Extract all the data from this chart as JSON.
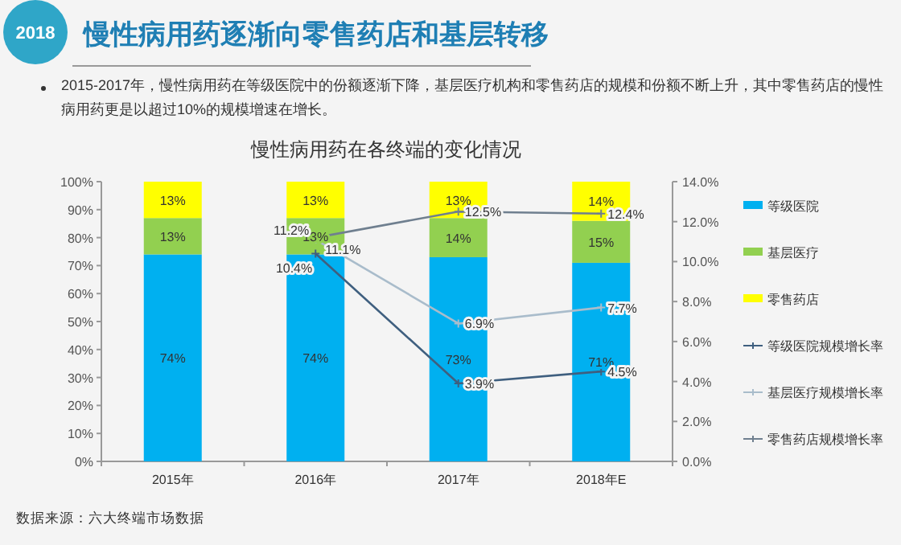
{
  "chart_data": {
    "type": "bar",
    "stacked": true,
    "title": "慢性病用药在各终端的变化情况",
    "annotations": [
      "2018",
      "慢性病用药逐渐向零售药店和基层转移",
      "2015-2017年，慢性病用药在等级医院中的份额逐渐下降，基层医疗机构和零售药店的规模和份额不断上升，其中零售药店的慢性病用药更是以超过10%的规模增速在增长。",
      "数据来源：六大终端市场数据"
    ],
    "categories": [
      "2015年",
      "2016年",
      "2017年",
      "2018年E"
    ],
    "series": [
      {
        "name": "等级医院",
        "color": "#00b0f0",
        "values": [
          74,
          74,
          73,
          71
        ],
        "value_labels": [
          "74%",
          "74%",
          "73%",
          "71%"
        ]
      },
      {
        "name": "基层医疗",
        "color": "#92d050",
        "values": [
          13,
          13,
          14,
          15
        ],
        "value_labels": [
          "13%",
          "13%",
          "14%",
          "15%"
        ]
      },
      {
        "name": "零售药店",
        "color": "#ffff00",
        "values": [
          13,
          13,
          13,
          14
        ],
        "value_labels": [
          "13%",
          "13%",
          "13%",
          "14%"
        ]
      },
      {
        "name": "等级医院规模增长率",
        "type": "line",
        "axis": "y2",
        "color": "#3f5f7f",
        "values": [
          null,
          10.4,
          3.9,
          4.5
        ],
        "value_labels": [
          null,
          "10.4%",
          "3.9%",
          "4.5%"
        ]
      },
      {
        "name": "基层医疗规模增长率",
        "type": "line",
        "axis": "y2",
        "color": "#a9bccb",
        "values": [
          null,
          11.1,
          6.9,
          7.7
        ],
        "value_labels": [
          null,
          "11.1%",
          "6.9%",
          "7.7%"
        ]
      },
      {
        "name": "零售药店规模增长率",
        "type": "line",
        "axis": "y2",
        "color": "#6f7f8f",
        "values": [
          null,
          11.2,
          12.5,
          12.4
        ],
        "value_labels": [
          null,
          "11.2%",
          "12.5%",
          "12.4%"
        ]
      }
    ],
    "ylim": [
      0,
      100
    ],
    "yticks": [
      {
        "value": 0,
        "label": "0%"
      },
      {
        "value": 10,
        "label": "10%"
      },
      {
        "value": 20,
        "label": "20%"
      },
      {
        "value": 30,
        "label": "30%"
      },
      {
        "value": 40,
        "label": "40%"
      },
      {
        "value": 50,
        "label": "50%"
      },
      {
        "value": 60,
        "label": "60%"
      },
      {
        "value": 70,
        "label": "70%"
      },
      {
        "value": 80,
        "label": "80%"
      },
      {
        "value": 90,
        "label": "90%"
      },
      {
        "value": 100,
        "label": "100%"
      }
    ],
    "y2lim": [
      0,
      14
    ],
    "y2ticks": [
      {
        "value": 0,
        "label": "0.0%"
      },
      {
        "value": 2,
        "label": "2.0%"
      },
      {
        "value": 4,
        "label": "4.0%"
      },
      {
        "value": 6,
        "label": "6.0%"
      },
      {
        "value": 8,
        "label": "8.0%"
      },
      {
        "value": 10,
        "label": "10.0%"
      },
      {
        "value": 12,
        "label": "12.0%"
      },
      {
        "value": 14,
        "label": "14.0%"
      }
    ],
    "marker": "cross",
    "legend": "right",
    "grid": false
  }
}
